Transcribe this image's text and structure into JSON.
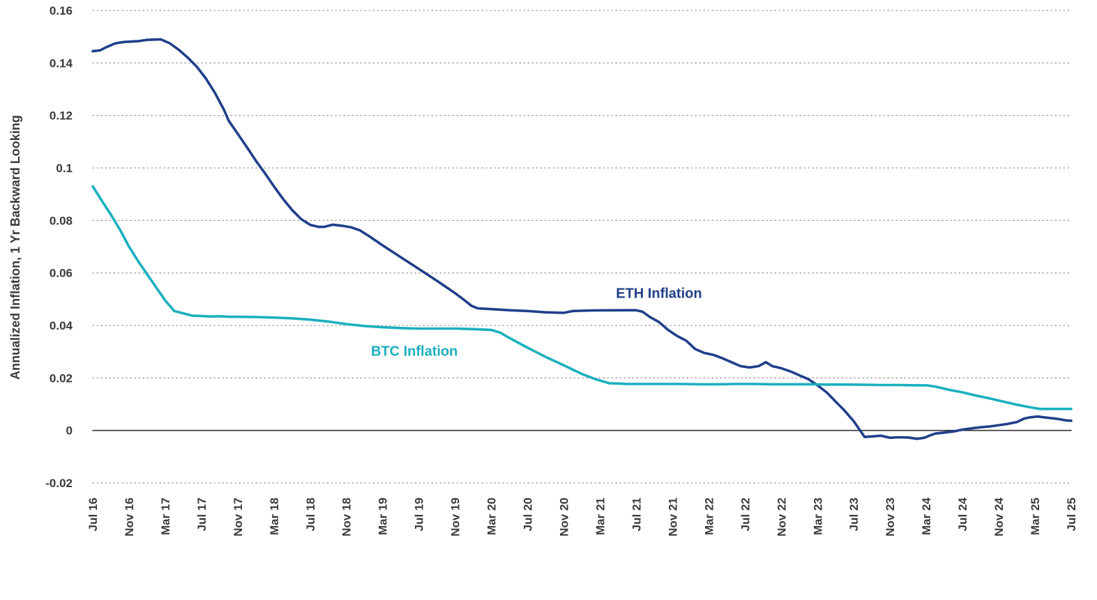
{
  "chart_data": {
    "type": "line",
    "title": "",
    "xlabel": "",
    "ylabel": "Annualized Inflation, 1 Yr Backward Looking",
    "ylim": [
      -0.02,
      0.16
    ],
    "yticks": [
      {
        "value": 0.16,
        "label": "0.16"
      },
      {
        "value": 0.14,
        "label": "0.14"
      },
      {
        "value": 0.12,
        "label": "0.12"
      },
      {
        "value": 0.1,
        "label": "0.1"
      },
      {
        "value": 0.08,
        "label": "0.08"
      },
      {
        "value": 0.06,
        "label": "0.06"
      },
      {
        "value": 0.04,
        "label": "0.04"
      },
      {
        "value": 0.02,
        "label": "0.02"
      },
      {
        "value": 0,
        "label": "0"
      },
      {
        "value": -0.02,
        "label": "-0.02"
      }
    ],
    "xlim": [
      0,
      108
    ],
    "xticks": [
      {
        "value": 0,
        "label": "Jul 16"
      },
      {
        "value": 4,
        "label": "Nov 16"
      },
      {
        "value": 8,
        "label": "Mar 17"
      },
      {
        "value": 12,
        "label": "Jul 17"
      },
      {
        "value": 16,
        "label": "Nov 17"
      },
      {
        "value": 20,
        "label": "Mar 18"
      },
      {
        "value": 24,
        "label": "Jul 18"
      },
      {
        "value": 28,
        "label": "Nov 18"
      },
      {
        "value": 32,
        "label": "Mar 19"
      },
      {
        "value": 36,
        "label": "Jul 19"
      },
      {
        "value": 40,
        "label": "Nov 19"
      },
      {
        "value": 44,
        "label": "Mar 20"
      },
      {
        "value": 48,
        "label": "Jul 20"
      },
      {
        "value": 52,
        "label": "Nov 20"
      },
      {
        "value": 56,
        "label": "Mar 21"
      },
      {
        "value": 60,
        "label": "Jul 21"
      },
      {
        "value": 64,
        "label": "Nov 21"
      },
      {
        "value": 68,
        "label": "Mar 22"
      },
      {
        "value": 72,
        "label": "Jul 22"
      },
      {
        "value": 76,
        "label": "Nov 22"
      },
      {
        "value": 80,
        "label": "Mar 23"
      },
      {
        "value": 84,
        "label": "Jul 23"
      },
      {
        "value": 88,
        "label": "Nov 23"
      },
      {
        "value": 92,
        "label": "Mar 24"
      },
      {
        "value": 96,
        "label": "Jul 24"
      },
      {
        "value": 100,
        "label": "Nov 24"
      },
      {
        "value": 104,
        "label": "Mar 25"
      },
      {
        "value": 108,
        "label": "Jul 25"
      }
    ],
    "grid": "horizontal-dotted",
    "series": [
      {
        "name": "ETH Inflation",
        "color": "#1f3f8a",
        "label_at": {
          "x": 62.5,
          "y": 0.0505
        },
        "points": [
          [
            0,
            0.1445
          ],
          [
            0.8,
            0.1448
          ],
          [
            1.5,
            0.146
          ],
          [
            2.5,
            0.1475
          ],
          [
            3.5,
            0.148
          ],
          [
            5,
            0.1483
          ],
          [
            6,
            0.1488
          ],
          [
            7.5,
            0.149
          ],
          [
            8.5,
            0.1475
          ],
          [
            9.5,
            0.145
          ],
          [
            10.5,
            0.142
          ],
          [
            11.5,
            0.1385
          ],
          [
            12.5,
            0.134
          ],
          [
            13.5,
            0.1285
          ],
          [
            14.5,
            0.122
          ],
          [
            15,
            0.118
          ],
          [
            16,
            0.113
          ],
          [
            17,
            0.108
          ],
          [
            18,
            0.1028
          ],
          [
            19,
            0.098
          ],
          [
            20,
            0.093
          ],
          [
            21,
            0.0882
          ],
          [
            22,
            0.084
          ],
          [
            23,
            0.0805
          ],
          [
            24,
            0.0783
          ],
          [
            25,
            0.0775
          ],
          [
            25.6,
            0.0776
          ],
          [
            26.5,
            0.0784
          ],
          [
            27.5,
            0.078
          ],
          [
            28.5,
            0.0774
          ],
          [
            29.5,
            0.0762
          ],
          [
            30.5,
            0.074
          ],
          [
            32,
            0.0705
          ],
          [
            34,
            0.066
          ],
          [
            36,
            0.0615
          ],
          [
            38,
            0.057
          ],
          [
            40,
            0.0523
          ],
          [
            41,
            0.0497
          ],
          [
            41.8,
            0.0475
          ],
          [
            42.5,
            0.0465
          ],
          [
            44,
            0.0462
          ],
          [
            46,
            0.0458
          ],
          [
            48,
            0.0455
          ],
          [
            50,
            0.045
          ],
          [
            52,
            0.0448
          ],
          [
            53,
            0.0455
          ],
          [
            55,
            0.0457
          ],
          [
            58,
            0.0458
          ],
          [
            60,
            0.0458
          ],
          [
            60.7,
            0.0452
          ],
          [
            61.5,
            0.0432
          ],
          [
            62.5,
            0.0413
          ],
          [
            63.5,
            0.0383
          ],
          [
            64.5,
            0.036
          ],
          [
            65.5,
            0.0342
          ],
          [
            66.5,
            0.031
          ],
          [
            67.5,
            0.0295
          ],
          [
            68.5,
            0.0288
          ],
          [
            69.5,
            0.0275
          ],
          [
            70.5,
            0.026
          ],
          [
            71.5,
            0.0245
          ],
          [
            72.5,
            0.024
          ],
          [
            73.5,
            0.0245
          ],
          [
            74.3,
            0.026
          ],
          [
            75,
            0.0245
          ],
          [
            76,
            0.0237
          ],
          [
            77,
            0.0225
          ],
          [
            78,
            0.021
          ],
          [
            79,
            0.0195
          ],
          [
            80,
            0.0172
          ],
          [
            81,
            0.0145
          ],
          [
            82,
            0.011
          ],
          [
            83,
            0.0075
          ],
          [
            84,
            0.0035
          ],
          [
            84.8,
            -0.0005
          ],
          [
            85.2,
            -0.0025
          ],
          [
            86,
            -0.0023
          ],
          [
            87,
            -0.002
          ],
          [
            88,
            -0.0028
          ],
          [
            89,
            -0.0026
          ],
          [
            90,
            -0.0027
          ],
          [
            91,
            -0.0032
          ],
          [
            91.8,
            -0.0028
          ],
          [
            92.5,
            -0.0018
          ],
          [
            93,
            -0.0012
          ],
          [
            94,
            -0.0008
          ],
          [
            95,
            -0.0004
          ],
          [
            96,
            0.0003
          ],
          [
            97,
            0.0008
          ],
          [
            98,
            0.0012
          ],
          [
            99,
            0.0015
          ],
          [
            100,
            0.002
          ],
          [
            101,
            0.0025
          ],
          [
            102,
            0.0032
          ],
          [
            102.8,
            0.0045
          ],
          [
            103.5,
            0.005
          ],
          [
            104.3,
            0.0053
          ],
          [
            105.5,
            0.0048
          ],
          [
            106.5,
            0.0044
          ],
          [
            107.5,
            0.0038
          ],
          [
            108,
            0.0037
          ]
        ]
      },
      {
        "name": "BTC Inflation",
        "color": "#1ab0bf",
        "label_at": {
          "x": 35.5,
          "y": 0.0285
        },
        "points": [
          [
            0,
            0.093
          ],
          [
            1,
            0.0875
          ],
          [
            2,
            0.0822
          ],
          [
            3,
            0.0765
          ],
          [
            4,
            0.07
          ],
          [
            5,
            0.0645
          ],
          [
            6,
            0.0595
          ],
          [
            7,
            0.0545
          ],
          [
            8,
            0.0495
          ],
          [
            9,
            0.0455
          ],
          [
            11,
            0.0437
          ],
          [
            12,
            0.0436
          ],
          [
            13,
            0.0434
          ],
          [
            14,
            0.0435
          ],
          [
            15,
            0.0433
          ],
          [
            16,
            0.0433
          ],
          [
            18,
            0.0432
          ],
          [
            20,
            0.043
          ],
          [
            22,
            0.0427
          ],
          [
            24,
            0.0422
          ],
          [
            26,
            0.0415
          ],
          [
            28,
            0.0405
          ],
          [
            30,
            0.0398
          ],
          [
            32,
            0.0393
          ],
          [
            34,
            0.039
          ],
          [
            36,
            0.0388
          ],
          [
            38,
            0.0388
          ],
          [
            40,
            0.0388
          ],
          [
            42,
            0.0386
          ],
          [
            44,
            0.0383
          ],
          [
            45,
            0.0372
          ],
          [
            46,
            0.0352
          ],
          [
            48,
            0.0315
          ],
          [
            50,
            0.028
          ],
          [
            52,
            0.0248
          ],
          [
            54,
            0.0215
          ],
          [
            55.5,
            0.0195
          ],
          [
            57,
            0.018
          ],
          [
            59,
            0.0177
          ],
          [
            61,
            0.0177
          ],
          [
            63,
            0.0177
          ],
          [
            65,
            0.0177
          ],
          [
            67,
            0.0176
          ],
          [
            69,
            0.0176
          ],
          [
            71,
            0.0177
          ],
          [
            73,
            0.0177
          ],
          [
            75,
            0.0176
          ],
          [
            77,
            0.0176
          ],
          [
            79,
            0.0176
          ],
          [
            81,
            0.0175
          ],
          [
            83,
            0.0175
          ],
          [
            85,
            0.0174
          ],
          [
            87,
            0.0173
          ],
          [
            89,
            0.0173
          ],
          [
            91,
            0.0172
          ],
          [
            92,
            0.0172
          ],
          [
            93,
            0.0167
          ],
          [
            94.5,
            0.0155
          ],
          [
            96,
            0.0145
          ],
          [
            97.5,
            0.0133
          ],
          [
            99,
            0.0122
          ],
          [
            100.5,
            0.011
          ],
          [
            102,
            0.0098
          ],
          [
            103.5,
            0.0088
          ],
          [
            104.5,
            0.0082
          ],
          [
            106,
            0.0082
          ],
          [
            108,
            0.0082
          ]
        ]
      }
    ]
  }
}
